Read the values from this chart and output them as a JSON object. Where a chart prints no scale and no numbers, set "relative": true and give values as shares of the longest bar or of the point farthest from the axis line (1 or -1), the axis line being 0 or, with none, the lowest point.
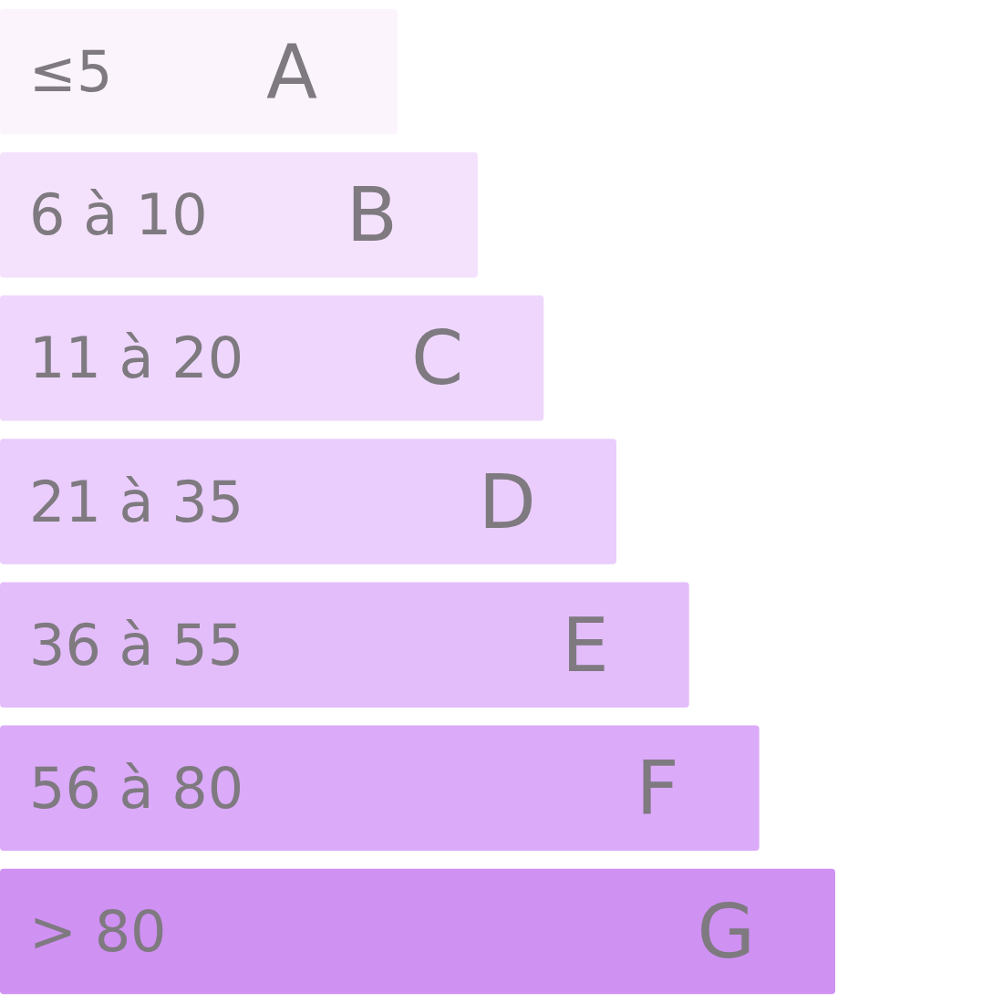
{
  "chart_data": {
    "type": "bar",
    "orientation": "horizontal",
    "relative": true,
    "categories": [
      "≤5",
      "6 à 10",
      "11 à 20",
      "21 à 35",
      "36 à 55",
      "56 à 80",
      "> 80"
    ],
    "values": [
      0.476,
      0.572,
      0.651,
      0.738,
      0.825,
      0.909,
      1
    ],
    "colors": [
      "#fbf4fd",
      "#f4e2fc",
      "#eed6fc",
      "#eacdfc",
      "#e3bdfa",
      "#dbaaf9",
      "#cf91f2"
    ],
    "annotations": [
      {
        "text": "A",
        "y": "≤5"
      },
      {
        "text": "B",
        "y": "6 à 10"
      },
      {
        "text": "C",
        "y": "11 à 20"
      },
      {
        "text": "D",
        "y": "21 à 35"
      },
      {
        "text": "E",
        "y": "36 à 55"
      },
      {
        "text": "F",
        "y": "56 à 80"
      },
      {
        "text": "G",
        "y": "> 80"
      }
    ]
  }
}
